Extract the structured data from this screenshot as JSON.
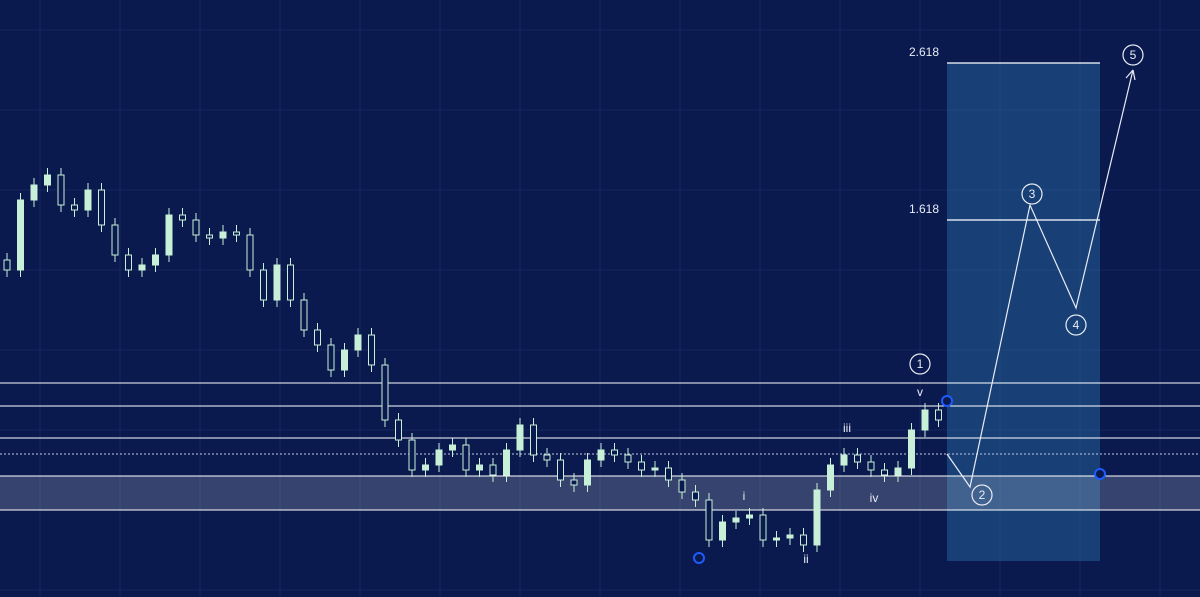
{
  "chart_data": {
    "type": "candlestick",
    "open": [
      337,
      327,
      397,
      412,
      422,
      392,
      387,
      407,
      372,
      342,
      327,
      332,
      342,
      382,
      377,
      362,
      359,
      365,
      362,
      327,
      297,
      332,
      297,
      267,
      252,
      227,
      247,
      262,
      232,
      177,
      157,
      127,
      132,
      147,
      152,
      127,
      132,
      122,
      147,
      172,
      142,
      137,
      117,
      112,
      137,
      147,
      142,
      135,
      127,
      129,
      117,
      105,
      97,
      57,
      75,
      79,
      82,
      57,
      59,
      62,
      52,
      107,
      132,
      142,
      135,
      127,
      122,
      129,
      167,
      187
    ],
    "high": [
      344,
      404,
      419,
      429,
      429,
      399,
      414,
      414,
      379,
      349,
      339,
      349,
      389,
      389,
      384,
      369,
      372,
      372,
      369,
      334,
      339,
      339,
      304,
      274,
      259,
      254,
      269,
      269,
      239,
      184,
      164,
      139,
      154,
      159,
      159,
      139,
      139,
      154,
      179,
      179,
      149,
      144,
      124,
      144,
      154,
      154,
      149,
      142,
      136,
      136,
      124,
      112,
      104,
      82,
      86,
      89,
      89,
      66,
      69,
      69,
      114,
      139,
      149,
      149,
      142,
      134,
      136,
      174,
      194,
      194
    ],
    "low": [
      320,
      320,
      390,
      405,
      385,
      380,
      380,
      365,
      335,
      320,
      320,
      325,
      335,
      370,
      355,
      352,
      352,
      355,
      320,
      290,
      290,
      290,
      260,
      245,
      220,
      220,
      240,
      225,
      170,
      150,
      120,
      120,
      125,
      140,
      120,
      120,
      115,
      115,
      140,
      135,
      130,
      110,
      105,
      105,
      130,
      135,
      128,
      120,
      120,
      110,
      98,
      90,
      50,
      50,
      68,
      72,
      50,
      50,
      52,
      45,
      45,
      100,
      125,
      128,
      120,
      115,
      115,
      122,
      160,
      170
    ],
    "close": [
      327,
      397,
      412,
      422,
      392,
      387,
      407,
      372,
      342,
      327,
      332,
      342,
      382,
      377,
      362,
      359,
      365,
      362,
      327,
      297,
      332,
      297,
      267,
      252,
      227,
      247,
      262,
      232,
      177,
      157,
      127,
      132,
      147,
      152,
      127,
      132,
      122,
      147,
      172,
      142,
      137,
      117,
      112,
      137,
      147,
      142,
      135,
      127,
      129,
      117,
      105,
      97,
      57,
      75,
      79,
      82,
      57,
      59,
      62,
      52,
      107,
      132,
      142,
      135,
      127,
      122,
      129,
      167,
      187,
      177
    ],
    "color": "#c8f0d8",
    "ylim": [
      0,
      597
    ],
    "levels": [
      214,
      191,
      159,
      121,
      87
    ],
    "dotted_level": 143,
    "zone": [
      87,
      121
    ],
    "fib_levels": [
      {
        "value": 534,
        "label": "2.618"
      },
      {
        "value": 377,
        "label": "1.618"
      }
    ],
    "fib_box": [
      36,
      534
    ],
    "wave": [
      142,
      110,
      392,
      289,
      527
    ],
    "wave_labels": [
      "1",
      "2",
      "3",
      "4",
      "5"
    ],
    "sub_wave_labels": [
      "i",
      "ii",
      "iii",
      "iv",
      "v"
    ],
    "pivots": [
      39,
      196,
      123
    ]
  }
}
